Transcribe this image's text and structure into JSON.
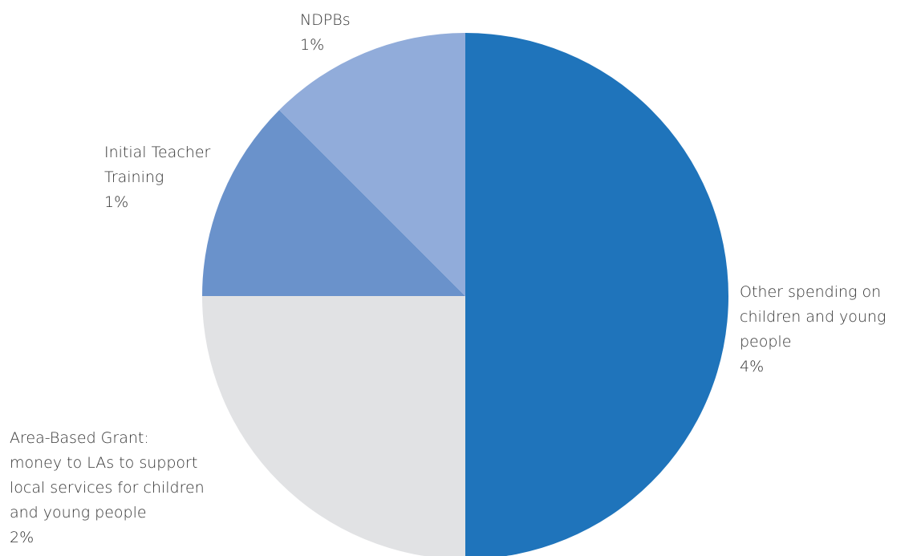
{
  "chart_data": {
    "type": "pie",
    "title": "",
    "start_angle": "12 o'clock",
    "direction": "clockwise",
    "slices": [
      {
        "label_lines": [
          "Other spending on",
          "children and young",
          "people"
        ],
        "percent_label": "4%",
        "value": 4,
        "color": "#1f74bb"
      },
      {
        "label_lines": [
          "Area-Based Grant:",
          "money to LAs to support",
          "local services for children",
          "and young people"
        ],
        "percent_label": "2%",
        "value": 2,
        "color": "#e1e2e4"
      },
      {
        "label_lines": [
          "Initial Teacher",
          "Training"
        ],
        "percent_label": "1%",
        "value": 1,
        "color": "#6a92cb"
      },
      {
        "label_lines": [
          "NDPBs"
        ],
        "percent_label": "1%",
        "value": 1,
        "color": "#91acda"
      }
    ]
  }
}
